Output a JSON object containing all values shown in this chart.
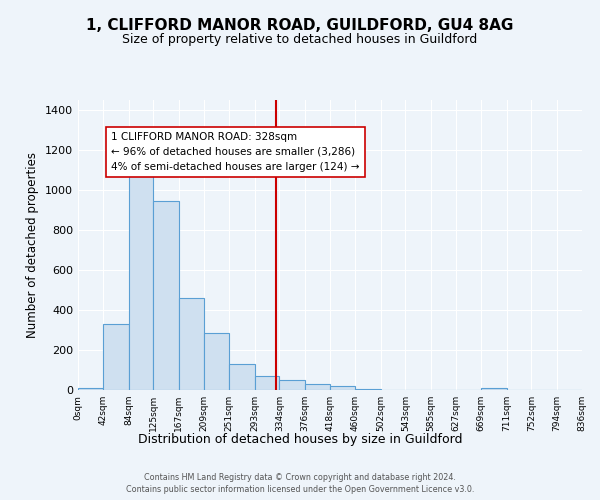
{
  "title": "1, CLIFFORD MANOR ROAD, GUILDFORD, GU4 8AG",
  "subtitle": "Size of property relative to detached houses in Guildford",
  "xlabel": "Distribution of detached houses by size in Guildford",
  "ylabel": "Number of detached properties",
  "bin_edges": [
    0,
    42,
    84,
    125,
    167,
    209,
    251,
    293,
    334,
    376,
    418,
    460,
    502,
    543,
    585,
    627,
    669,
    711,
    752,
    794,
    836
  ],
  "bin_labels": [
    "0sqm",
    "42sqm",
    "84sqm",
    "125sqm",
    "167sqm",
    "209sqm",
    "251sqm",
    "293sqm",
    "334sqm",
    "376sqm",
    "418sqm",
    "460sqm",
    "502sqm",
    "543sqm",
    "585sqm",
    "627sqm",
    "669sqm",
    "711sqm",
    "752sqm",
    "794sqm",
    "836sqm"
  ],
  "counts": [
    8,
    328,
    1108,
    944,
    462,
    285,
    128,
    72,
    48,
    28,
    20,
    5,
    0,
    0,
    0,
    0,
    8,
    0,
    0,
    0
  ],
  "bar_facecolor": "#cfe0f0",
  "bar_edgecolor": "#5a9fd4",
  "vline_color": "#cc0000",
  "vline_x": 328,
  "annotation_text": "1 CLIFFORD MANOR ROAD: 328sqm\n← 96% of detached houses are smaller (3,286)\n4% of semi-detached houses are larger (124) →",
  "annotation_box_edgecolor": "#cc0000",
  "annotation_box_facecolor": "#ffffff",
  "ylim": [
    0,
    1450
  ],
  "yticks": [
    0,
    200,
    400,
    600,
    800,
    1000,
    1200,
    1400
  ],
  "bg_color": "#eef4fa",
  "footer_line1": "Contains HM Land Registry data © Crown copyright and database right 2024.",
  "footer_line2": "Contains public sector information licensed under the Open Government Licence v3.0."
}
